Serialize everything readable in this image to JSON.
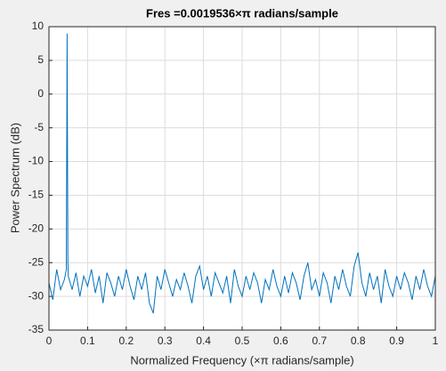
{
  "chart_data": {
    "type": "line",
    "title": "Fres =0.0019536×π radians/sample",
    "x_label": "Normalized Frequency (×π radians/sample)",
    "y_label": "Power Spectrum (dB)",
    "color": "#0072bd",
    "grid": true,
    "xlim": [
      0,
      1
    ],
    "ylim": [
      -35,
      10
    ],
    "xticks": [
      0,
      0.1,
      0.2,
      0.3,
      0.4,
      0.5,
      0.6,
      0.7,
      0.8,
      0.9,
      1
    ],
    "yticks": [
      -35,
      -30,
      -25,
      -20,
      -15,
      -10,
      -5,
      0,
      5,
      10
    ],
    "x": [
      0,
      0.01,
      0.02,
      0.03,
      0.04,
      0.045,
      0.047,
      0.049,
      0.05,
      0.06,
      0.07,
      0.08,
      0.09,
      0.1,
      0.11,
      0.12,
      0.13,
      0.14,
      0.15,
      0.16,
      0.17,
      0.18,
      0.19,
      0.2,
      0.21,
      0.22,
      0.23,
      0.24,
      0.25,
      0.26,
      0.27,
      0.28,
      0.29,
      0.3,
      0.31,
      0.32,
      0.33,
      0.34,
      0.35,
      0.36,
      0.37,
      0.38,
      0.39,
      0.4,
      0.41,
      0.42,
      0.43,
      0.44,
      0.45,
      0.46,
      0.47,
      0.48,
      0.49,
      0.5,
      0.51,
      0.52,
      0.53,
      0.54,
      0.55,
      0.56,
      0.57,
      0.58,
      0.59,
      0.6,
      0.61,
      0.62,
      0.63,
      0.64,
      0.65,
      0.66,
      0.67,
      0.68,
      0.69,
      0.7,
      0.71,
      0.72,
      0.73,
      0.74,
      0.75,
      0.76,
      0.77,
      0.78,
      0.79,
      0.8,
      0.81,
      0.82,
      0.83,
      0.84,
      0.85,
      0.86,
      0.87,
      0.88,
      0.89,
      0.9,
      0.91,
      0.92,
      0.93,
      0.94,
      0.95,
      0.96,
      0.97,
      0.98,
      0.99,
      1
    ],
    "values": [
      -28,
      -30.5,
      -26,
      -29,
      -27.5,
      -26,
      9,
      -25,
      -27,
      -29,
      -26.5,
      -30,
      -27,
      -28.5,
      -26,
      -29.5,
      -27,
      -31,
      -26.5,
      -28,
      -30,
      -27,
      -29,
      -26,
      -28.5,
      -30.5,
      -27,
      -29,
      -26.5,
      -31,
      -32.5,
      -27,
      -29,
      -26,
      -28,
      -30,
      -27.5,
      -29,
      -26.5,
      -28.5,
      -31,
      -27,
      -25.5,
      -29,
      -27,
      -30,
      -26.5,
      -28,
      -29.5,
      -27,
      -31,
      -26,
      -28.5,
      -30,
      -27,
      -29,
      -26.5,
      -28,
      -31,
      -27.5,
      -29,
      -26,
      -28.5,
      -30,
      -27,
      -29.5,
      -26.5,
      -28,
      -30.5,
      -27,
      -25,
      -29,
      -27.5,
      -30,
      -26.5,
      -28,
      -31,
      -27,
      -29,
      -26,
      -28.5,
      -30,
      -25.5,
      -23.5,
      -28,
      -30,
      -26.5,
      -29,
      -27,
      -31,
      -26,
      -28.5,
      -30,
      -27,
      -29,
      -26.5,
      -28,
      -30.5,
      -27,
      -29,
      -26,
      -28.5,
      -30,
      -27
    ]
  }
}
